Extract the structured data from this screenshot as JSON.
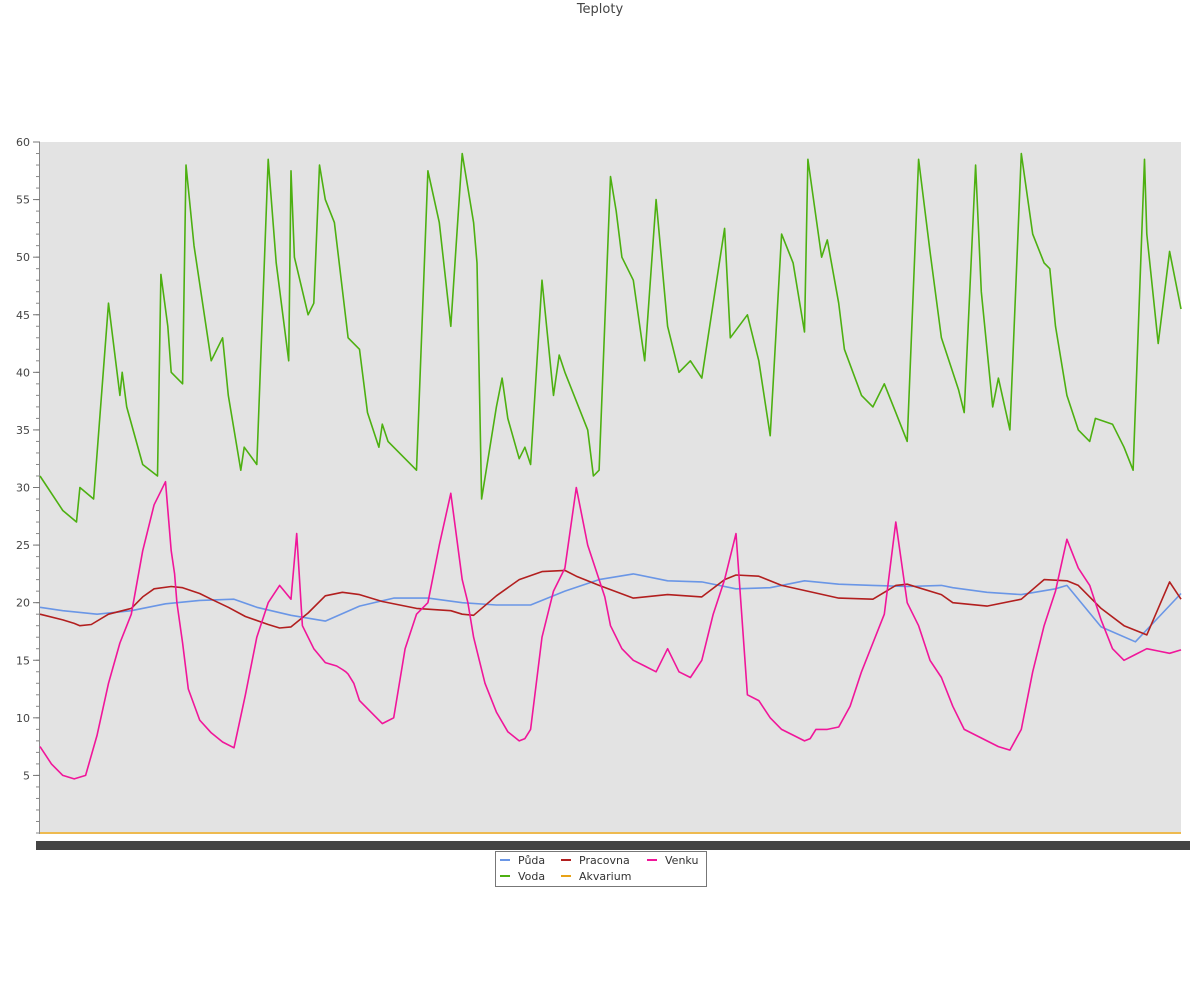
{
  "chart_data": {
    "type": "line",
    "title": "Teploty",
    "xlabel": "",
    "ylabel": "",
    "ylim": [
      0,
      60
    ],
    "y_ticks": [
      5,
      10,
      15,
      20,
      25,
      30,
      35,
      40,
      45,
      50,
      55,
      60
    ],
    "grid": false,
    "legend": "bottom-center",
    "background": "#e3e3e3",
    "series": [
      {
        "name": "Půda",
        "color": "#6a96e6",
        "x": [
          0,
          0.02,
          0.05,
          0.08,
          0.11,
          0.14,
          0.17,
          0.19,
          0.22,
          0.25,
          0.28,
          0.31,
          0.34,
          0.37,
          0.4,
          0.43,
          0.46,
          0.49,
          0.52,
          0.55,
          0.58,
          0.61,
          0.64,
          0.67,
          0.7,
          0.73,
          0.76,
          0.79,
          0.8,
          0.83,
          0.86,
          0.89,
          0.9,
          0.93,
          0.96,
          1.0
        ],
        "values": [
          19.6,
          19.3,
          19.0,
          19.3,
          19.9,
          20.2,
          20.3,
          19.6,
          18.9,
          18.4,
          19.7,
          20.4,
          20.4,
          20.0,
          19.8,
          19.8,
          21.0,
          22.0,
          22.5,
          21.9,
          21.8,
          21.2,
          21.3,
          21.9,
          21.6,
          21.5,
          21.4,
          21.5,
          21.3,
          20.9,
          20.7,
          21.2,
          21.5,
          17.9,
          16.6,
          20.8
        ]
      },
      {
        "name": "Voda",
        "color": "#4db011",
        "x": [
          0,
          0.02,
          0.032,
          0.035,
          0.047,
          0.06,
          0.07,
          0.072,
          0.076,
          0.09,
          0.103,
          0.106,
          0.112,
          0.115,
          0.125,
          0.128,
          0.135,
          0.15,
          0.16,
          0.165,
          0.176,
          0.179,
          0.19,
          0.2,
          0.207,
          0.218,
          0.22,
          0.223,
          0.235,
          0.24,
          0.245,
          0.25,
          0.258,
          0.27,
          0.28,
          0.287,
          0.297,
          0.3,
          0.305,
          0.33,
          0.34,
          0.35,
          0.36,
          0.37,
          0.38,
          0.383,
          0.387,
          0.4,
          0.405,
          0.41,
          0.42,
          0.425,
          0.43,
          0.44,
          0.45,
          0.455,
          0.46,
          0.48,
          0.485,
          0.49,
          0.5,
          0.505,
          0.51,
          0.52,
          0.53,
          0.54,
          0.55,
          0.56,
          0.57,
          0.58,
          0.6,
          0.605,
          0.62,
          0.63,
          0.64,
          0.65,
          0.66,
          0.67,
          0.673,
          0.685,
          0.69,
          0.7,
          0.705,
          0.72,
          0.73,
          0.74,
          0.75,
          0.76,
          0.77,
          0.78,
          0.79,
          0.805,
          0.81,
          0.82,
          0.825,
          0.835,
          0.84,
          0.85,
          0.86,
          0.87,
          0.88,
          0.885,
          0.89,
          0.9,
          0.91,
          0.92,
          0.925,
          0.94,
          0.95,
          0.958,
          0.968,
          0.97,
          0.98,
          0.99,
          1.0
        ],
        "values": [
          31,
          28,
          27,
          30,
          29,
          46,
          38,
          40,
          37,
          32,
          31,
          48.5,
          44,
          40,
          39,
          58,
          51,
          41,
          43,
          38,
          31.5,
          33.5,
          32,
          58.5,
          49.5,
          41,
          57.5,
          50,
          45,
          46,
          58,
          55,
          53,
          43,
          42,
          36.5,
          33.5,
          35.5,
          34,
          31.5,
          57.5,
          53,
          44,
          59,
          53,
          49.5,
          29,
          37,
          39.5,
          36,
          32.5,
          33.5,
          32,
          48,
          38,
          41.5,
          40,
          35,
          31,
          31.5,
          57,
          54,
          50,
          48,
          41,
          55,
          44,
          40,
          41,
          39.5,
          52.5,
          43,
          45,
          41,
          34.5,
          52,
          49.5,
          43.5,
          58.5,
          50,
          51.5,
          46,
          42,
          38,
          37,
          39,
          36.5,
          34,
          58.5,
          50.5,
          43,
          38.5,
          36.5,
          58,
          47,
          37,
          39.5,
          35,
          59,
          52,
          49.5,
          49,
          44,
          38,
          35,
          34,
          36,
          35.5,
          33.5,
          31.5,
          58.5,
          52,
          42.5,
          50.5,
          45.5
        ]
      },
      {
        "name": "Pracovna",
        "color": "#b21f1f",
        "x": [
          0,
          0.02,
          0.03,
          0.035,
          0.045,
          0.06,
          0.08,
          0.09,
          0.1,
          0.115,
          0.125,
          0.14,
          0.15,
          0.165,
          0.18,
          0.2,
          0.21,
          0.22,
          0.235,
          0.25,
          0.265,
          0.28,
          0.3,
          0.33,
          0.36,
          0.37,
          0.38,
          0.4,
          0.42,
          0.44,
          0.46,
          0.47,
          0.49,
          0.52,
          0.55,
          0.58,
          0.6,
          0.61,
          0.63,
          0.65,
          0.7,
          0.73,
          0.75,
          0.76,
          0.79,
          0.8,
          0.83,
          0.86,
          0.88,
          0.9,
          0.91,
          0.93,
          0.95,
          0.97,
          0.99,
          1.0
        ],
        "values": [
          19,
          18.5,
          18.2,
          18.0,
          18.1,
          19.0,
          19.5,
          20.5,
          21.2,
          21.4,
          21.3,
          20.8,
          20.3,
          19.6,
          18.8,
          18.1,
          17.8,
          17.9,
          19.1,
          20.6,
          20.9,
          20.7,
          20.1,
          19.5,
          19.3,
          19.0,
          18.9,
          20.6,
          22.0,
          22.7,
          22.8,
          22.3,
          21.5,
          20.4,
          20.7,
          20.5,
          22.0,
          22.4,
          22.3,
          21.5,
          20.4,
          20.3,
          21.5,
          21.6,
          20.7,
          20.0,
          19.7,
          20.3,
          22.0,
          21.9,
          21.5,
          19.5,
          18.0,
          17.2,
          21.8,
          20.3
        ]
      },
      {
        "name": "Akvarium",
        "color": "#e8a317",
        "x": [
          0,
          1.0
        ],
        "values": [
          0,
          0
        ]
      },
      {
        "name": "Venku",
        "color": "#f0169a",
        "x": [
          0,
          0.01,
          0.02,
          0.03,
          0.04,
          0.05,
          0.06,
          0.07,
          0.08,
          0.09,
          0.1,
          0.105,
          0.11,
          0.115,
          0.118,
          0.12,
          0.125,
          0.13,
          0.14,
          0.15,
          0.16,
          0.17,
          0.18,
          0.19,
          0.2,
          0.21,
          0.22,
          0.225,
          0.23,
          0.24,
          0.25,
          0.26,
          0.265,
          0.268,
          0.27,
          0.275,
          0.28,
          0.29,
          0.3,
          0.31,
          0.32,
          0.33,
          0.34,
          0.35,
          0.36,
          0.37,
          0.375,
          0.38,
          0.385,
          0.39,
          0.4,
          0.41,
          0.42,
          0.425,
          0.43,
          0.44,
          0.45,
          0.46,
          0.47,
          0.48,
          0.49,
          0.495,
          0.5,
          0.51,
          0.52,
          0.53,
          0.54,
          0.55,
          0.56,
          0.57,
          0.58,
          0.59,
          0.6,
          0.61,
          0.62,
          0.63,
          0.64,
          0.65,
          0.66,
          0.67,
          0.675,
          0.68,
          0.69,
          0.7,
          0.71,
          0.72,
          0.73,
          0.74,
          0.75,
          0.76,
          0.765,
          0.77,
          0.78,
          0.79,
          0.8,
          0.81,
          0.82,
          0.83,
          0.84,
          0.85,
          0.86,
          0.87,
          0.88,
          0.885,
          0.89,
          0.9,
          0.91,
          0.92,
          0.93,
          0.94,
          0.95,
          0.96,
          0.97,
          0.98,
          0.99,
          1.0
        ],
        "values": [
          7.5,
          6.0,
          5.0,
          4.7,
          5.0,
          8.5,
          13.0,
          16.5,
          19.0,
          24.5,
          28.5,
          29.5,
          30.5,
          24.5,
          22.5,
          20.0,
          16.5,
          12.5,
          9.8,
          8.7,
          7.9,
          7.4,
          12.0,
          17.0,
          20.0,
          21.5,
          20.3,
          26.0,
          18.0,
          16.0,
          14.8,
          14.5,
          14.2,
          14.0,
          13.8,
          13.0,
          11.5,
          10.5,
          9.5,
          10.0,
          16.0,
          19.0,
          20.0,
          25.0,
          29.5,
          22.0,
          20.0,
          17.0,
          15.0,
          13.0,
          10.5,
          8.8,
          8.0,
          8.2,
          9.0,
          17.0,
          21.0,
          23.0,
          30.0,
          25.0,
          22.0,
          20.5,
          18.0,
          16.0,
          15.0,
          14.5,
          14.0,
          16.0,
          14.0,
          13.5,
          15.0,
          19.0,
          22.0,
          26.0,
          12.0,
          11.5,
          10.0,
          9.0,
          8.5,
          8.0,
          8.2,
          9.0,
          9.0,
          9.2,
          11.0,
          14.0,
          16.5,
          19.0,
          27.0,
          20.0,
          19.0,
          18.0,
          15.0,
          13.5,
          11.0,
          9.0,
          8.5,
          8.0,
          7.5,
          7.2,
          9.0,
          14.0,
          18.0,
          19.5,
          21.0,
          25.5,
          23.0,
          21.5,
          18.5,
          16.0,
          15.0,
          15.5,
          16.0,
          15.8,
          15.6,
          15.9
        ]
      }
    ]
  },
  "legend": {
    "items": [
      "Půda",
      "Pracovna",
      "Venku",
      "Voda",
      "Akvarium"
    ]
  }
}
